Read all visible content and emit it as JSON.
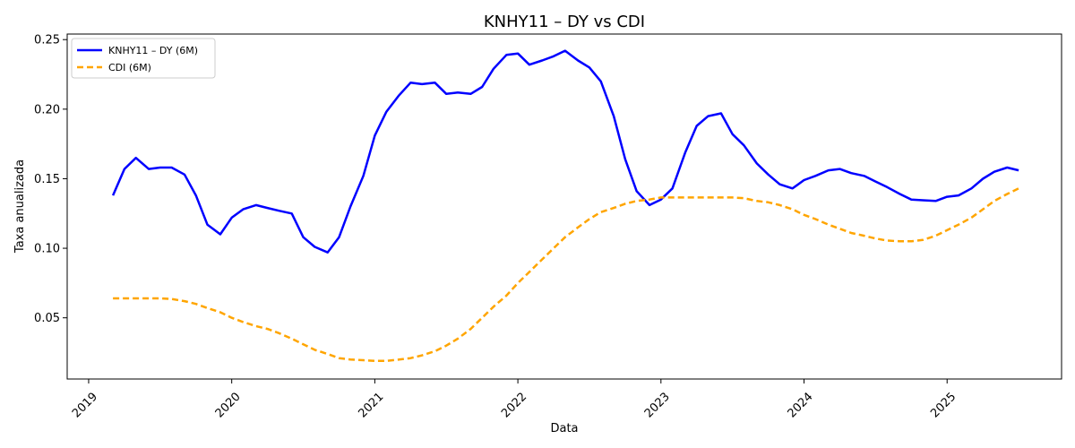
{
  "chart_data": {
    "type": "line",
    "title": "KNHY11 – DY vs CDI",
    "xlabel": "Data",
    "ylabel": "Taxa anualizada",
    "xlim": [
      2018.85,
      2025.8
    ],
    "ylim": [
      0.006,
      0.254
    ],
    "x_ticks": [
      2019,
      2020,
      2021,
      2022,
      2023,
      2024,
      2025
    ],
    "x_tick_labels": [
      "2019",
      "2020",
      "2021",
      "2022",
      "2023",
      "2024",
      "2025"
    ],
    "y_ticks": [
      0.05,
      0.1,
      0.15,
      0.2,
      0.25
    ],
    "y_tick_labels": [
      "0.05",
      "0.10",
      "0.15",
      "0.20",
      "0.25"
    ],
    "legend_position": "top-left",
    "grid": false,
    "series": [
      {
        "name": "KNHY11 – DY (6M)",
        "color": "#0000ff",
        "style": "solid",
        "points": [
          [
            2019.17,
            0.138
          ],
          [
            2019.25,
            0.157
          ],
          [
            2019.33,
            0.165
          ],
          [
            2019.42,
            0.157
          ],
          [
            2019.5,
            0.158
          ],
          [
            2019.58,
            0.158
          ],
          [
            2019.67,
            0.153
          ],
          [
            2019.75,
            0.138
          ],
          [
            2019.83,
            0.117
          ],
          [
            2019.92,
            0.11
          ],
          [
            2020.0,
            0.122
          ],
          [
            2020.08,
            0.128
          ],
          [
            2020.17,
            0.131
          ],
          [
            2020.25,
            0.129
          ],
          [
            2020.33,
            0.127
          ],
          [
            2020.42,
            0.125
          ],
          [
            2020.5,
            0.108
          ],
          [
            2020.58,
            0.101
          ],
          [
            2020.67,
            0.097
          ],
          [
            2020.75,
            0.108
          ],
          [
            2020.83,
            0.13
          ],
          [
            2020.92,
            0.152
          ],
          [
            2021.0,
            0.181
          ],
          [
            2021.08,
            0.198
          ],
          [
            2021.17,
            0.21
          ],
          [
            2021.25,
            0.219
          ],
          [
            2021.33,
            0.218
          ],
          [
            2021.42,
            0.219
          ],
          [
            2021.5,
            0.211
          ],
          [
            2021.58,
            0.212
          ],
          [
            2021.67,
            0.211
          ],
          [
            2021.75,
            0.216
          ],
          [
            2021.83,
            0.229
          ],
          [
            2021.92,
            0.239
          ],
          [
            2022.0,
            0.24
          ],
          [
            2022.08,
            0.232
          ],
          [
            2022.17,
            0.235
          ],
          [
            2022.25,
            0.238
          ],
          [
            2022.33,
            0.242
          ],
          [
            2022.42,
            0.235
          ],
          [
            2022.5,
            0.23
          ],
          [
            2022.58,
            0.22
          ],
          [
            2022.67,
            0.195
          ],
          [
            2022.75,
            0.164
          ],
          [
            2022.83,
            0.141
          ],
          [
            2022.92,
            0.131
          ],
          [
            2023.0,
            0.135
          ],
          [
            2023.08,
            0.143
          ],
          [
            2023.17,
            0.169
          ],
          [
            2023.25,
            0.188
          ],
          [
            2023.33,
            0.195
          ],
          [
            2023.42,
            0.197
          ],
          [
            2023.5,
            0.182
          ],
          [
            2023.58,
            0.174
          ],
          [
            2023.67,
            0.161
          ],
          [
            2023.75,
            0.153
          ],
          [
            2023.83,
            0.146
          ],
          [
            2023.92,
            0.143
          ],
          [
            2024.0,
            0.149
          ],
          [
            2024.08,
            0.152
          ],
          [
            2024.17,
            0.156
          ],
          [
            2024.25,
            0.157
          ],
          [
            2024.33,
            0.154
          ],
          [
            2024.42,
            0.152
          ],
          [
            2024.5,
            0.148
          ],
          [
            2024.58,
            0.144
          ],
          [
            2024.67,
            0.139
          ],
          [
            2024.75,
            0.135
          ],
          [
            2024.83,
            0.1345
          ],
          [
            2024.92,
            0.134
          ],
          [
            2025.0,
            0.137
          ],
          [
            2025.08,
            0.138
          ],
          [
            2025.17,
            0.143
          ],
          [
            2025.25,
            0.15
          ],
          [
            2025.33,
            0.155
          ],
          [
            2025.42,
            0.158
          ],
          [
            2025.5,
            0.156
          ]
        ]
      },
      {
        "name": "CDI (6M)",
        "color": "#ffa500",
        "style": "dashed",
        "points": [
          [
            2019.17,
            0.064
          ],
          [
            2019.25,
            0.064
          ],
          [
            2019.33,
            0.064
          ],
          [
            2019.42,
            0.064
          ],
          [
            2019.5,
            0.064
          ],
          [
            2019.58,
            0.0635
          ],
          [
            2019.67,
            0.062
          ],
          [
            2019.75,
            0.06
          ],
          [
            2019.83,
            0.057
          ],
          [
            2019.92,
            0.054
          ],
          [
            2020.0,
            0.05
          ],
          [
            2020.08,
            0.047
          ],
          [
            2020.17,
            0.044
          ],
          [
            2020.25,
            0.042
          ],
          [
            2020.33,
            0.039
          ],
          [
            2020.42,
            0.035
          ],
          [
            2020.5,
            0.031
          ],
          [
            2020.58,
            0.027
          ],
          [
            2020.67,
            0.024
          ],
          [
            2020.75,
            0.021
          ],
          [
            2020.83,
            0.02
          ],
          [
            2020.92,
            0.0195
          ],
          [
            2021.0,
            0.019
          ],
          [
            2021.08,
            0.019
          ],
          [
            2021.17,
            0.02
          ],
          [
            2021.25,
            0.021
          ],
          [
            2021.33,
            0.023
          ],
          [
            2021.42,
            0.026
          ],
          [
            2021.5,
            0.03
          ],
          [
            2021.58,
            0.035
          ],
          [
            2021.67,
            0.042
          ],
          [
            2021.75,
            0.05
          ],
          [
            2021.83,
            0.058
          ],
          [
            2021.92,
            0.066
          ],
          [
            2022.0,
            0.075
          ],
          [
            2022.08,
            0.083
          ],
          [
            2022.17,
            0.092
          ],
          [
            2022.25,
            0.1
          ],
          [
            2022.33,
            0.108
          ],
          [
            2022.42,
            0.115
          ],
          [
            2022.5,
            0.121
          ],
          [
            2022.58,
            0.126
          ],
          [
            2022.67,
            0.129
          ],
          [
            2022.75,
            0.132
          ],
          [
            2022.83,
            0.134
          ],
          [
            2022.92,
            0.135
          ],
          [
            2023.0,
            0.1365
          ],
          [
            2023.17,
            0.1365
          ],
          [
            2023.33,
            0.1365
          ],
          [
            2023.5,
            0.1365
          ],
          [
            2023.58,
            0.136
          ],
          [
            2023.67,
            0.134
          ],
          [
            2023.75,
            0.133
          ],
          [
            2023.83,
            0.131
          ],
          [
            2023.92,
            0.128
          ],
          [
            2024.0,
            0.124
          ],
          [
            2024.08,
            0.121
          ],
          [
            2024.17,
            0.117
          ],
          [
            2024.25,
            0.114
          ],
          [
            2024.33,
            0.111
          ],
          [
            2024.42,
            0.109
          ],
          [
            2024.5,
            0.107
          ],
          [
            2024.58,
            0.1055
          ],
          [
            2024.67,
            0.105
          ],
          [
            2024.75,
            0.105
          ],
          [
            2024.83,
            0.106
          ],
          [
            2024.92,
            0.109
          ],
          [
            2025.0,
            0.113
          ],
          [
            2025.08,
            0.117
          ],
          [
            2025.17,
            0.122
          ],
          [
            2025.25,
            0.128
          ],
          [
            2025.33,
            0.134
          ],
          [
            2025.42,
            0.139
          ],
          [
            2025.5,
            0.143
          ]
        ]
      }
    ]
  }
}
